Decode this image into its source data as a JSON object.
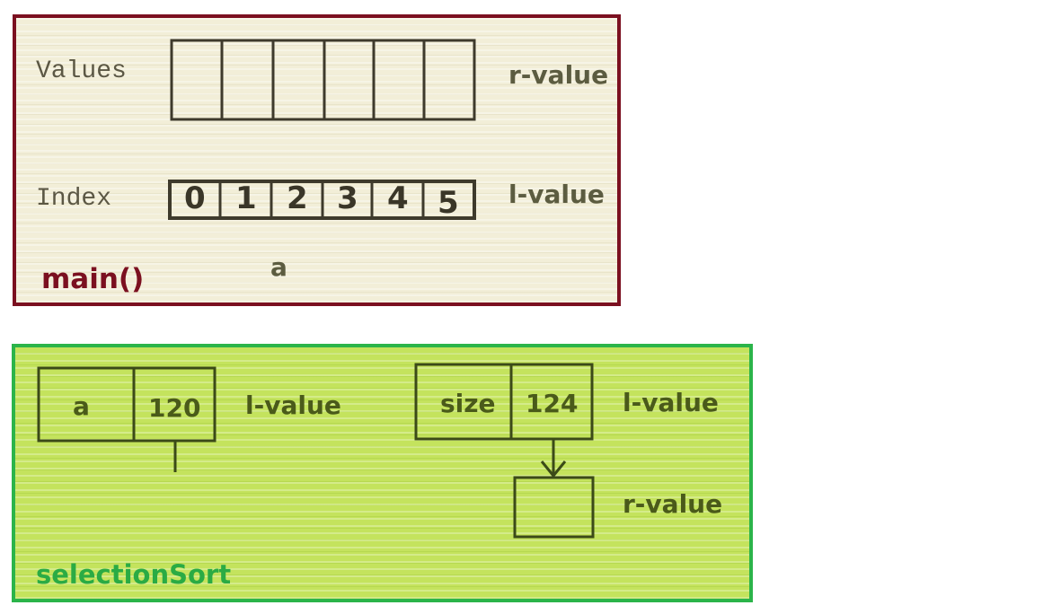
{
  "main_frame": {
    "title": "main()",
    "values_label": "Values",
    "index_label": "Index",
    "r_value_label": "r-value",
    "l_value_label": "l-value",
    "array_name": "a",
    "indices": [
      "0",
      "1",
      "2",
      "3",
      "4",
      "5"
    ]
  },
  "selection_sort_frame": {
    "title": "selectionSort",
    "param_a_name": "a",
    "param_a_value": "120",
    "param_a_label": "l-value",
    "param_size_name": "size",
    "param_size_value": "124",
    "param_size_label": "l-value",
    "target_label": "r-value"
  },
  "colors": {
    "main_border": "#7b1020",
    "sort_border": "#2bb44a",
    "main_background": "#f2eed8",
    "sort_background": "#c4e35d"
  }
}
